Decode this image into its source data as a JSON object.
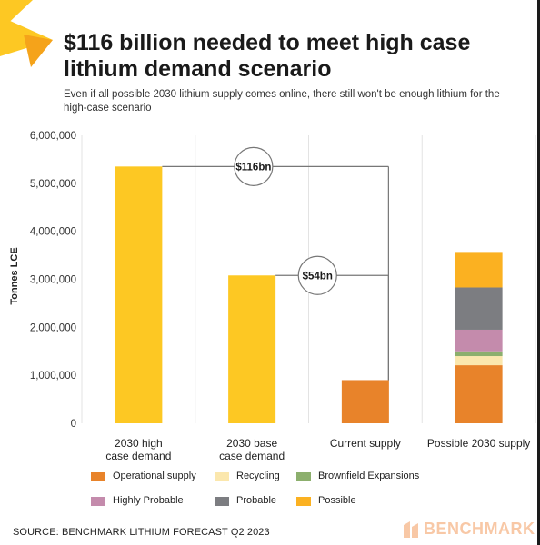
{
  "title": "$116 billion needed to meet high case lithium demand scenario",
  "subtitle": "Even if all possible 2030 lithium supply comes online, there still won't be enough lithium for the high-case scenario",
  "source": "SOURCE: BENCHMARK LITHIUM FORECAST Q2 2023",
  "brand": "BENCHMARK",
  "colors": {
    "operational": "#e8832a",
    "recycling": "#fbe7ad",
    "brownfield": "#8caf6d",
    "highly_probable": "#c48bac",
    "probable": "#7c7d81",
    "possible": "#fbb121",
    "demand": "#fdc823",
    "current": "#e8832a"
  },
  "chart_data": {
    "type": "bar",
    "stacked": true,
    "ylabel": "Tonnes LCE",
    "ylim": [
      0,
      6000000
    ],
    "yticks": [
      "0",
      "1,000,000",
      "2,000,000",
      "3,000,000",
      "4,000,000",
      "5,000,000",
      "6,000,000"
    ],
    "categories": [
      [
        "2030 high",
        "case demand"
      ],
      [
        "2030 base",
        "case demand"
      ],
      [
        "Current supply"
      ],
      [
        "Possible 2030 supply"
      ]
    ],
    "demand_values": [
      5350000,
      3080000
    ],
    "current_supply": 900000,
    "possible_stack": [
      {
        "name": "Operational supply",
        "key": "operational",
        "value": 1210000
      },
      {
        "name": "Recycling",
        "key": "recycling",
        "value": 190000
      },
      {
        "name": "Brownfield Expansions",
        "key": "brownfield",
        "value": 100000
      },
      {
        "name": "Highly Probable",
        "key": "highly_probable",
        "value": 450000
      },
      {
        "name": "Probable",
        "key": "probable",
        "value": 880000
      },
      {
        "name": "Possible",
        "key": "possible",
        "value": 740000
      }
    ],
    "annotations": [
      {
        "label": "$116bn",
        "from_category": 0,
        "value": 5350000
      },
      {
        "label": "$54bn",
        "from_category": 1,
        "value": 3080000
      }
    ],
    "legend": [
      {
        "label": "Operational supply",
        "key": "operational"
      },
      {
        "label": "Recycling",
        "key": "recycling"
      },
      {
        "label": "Brownfield Expansions",
        "key": "brownfield"
      },
      {
        "label": "Highly Probable",
        "key": "highly_probable"
      },
      {
        "label": "Probable",
        "key": "probable"
      },
      {
        "label": "Possible",
        "key": "possible"
      }
    ],
    "grid": "vertical",
    "legend_position": "bottom"
  }
}
